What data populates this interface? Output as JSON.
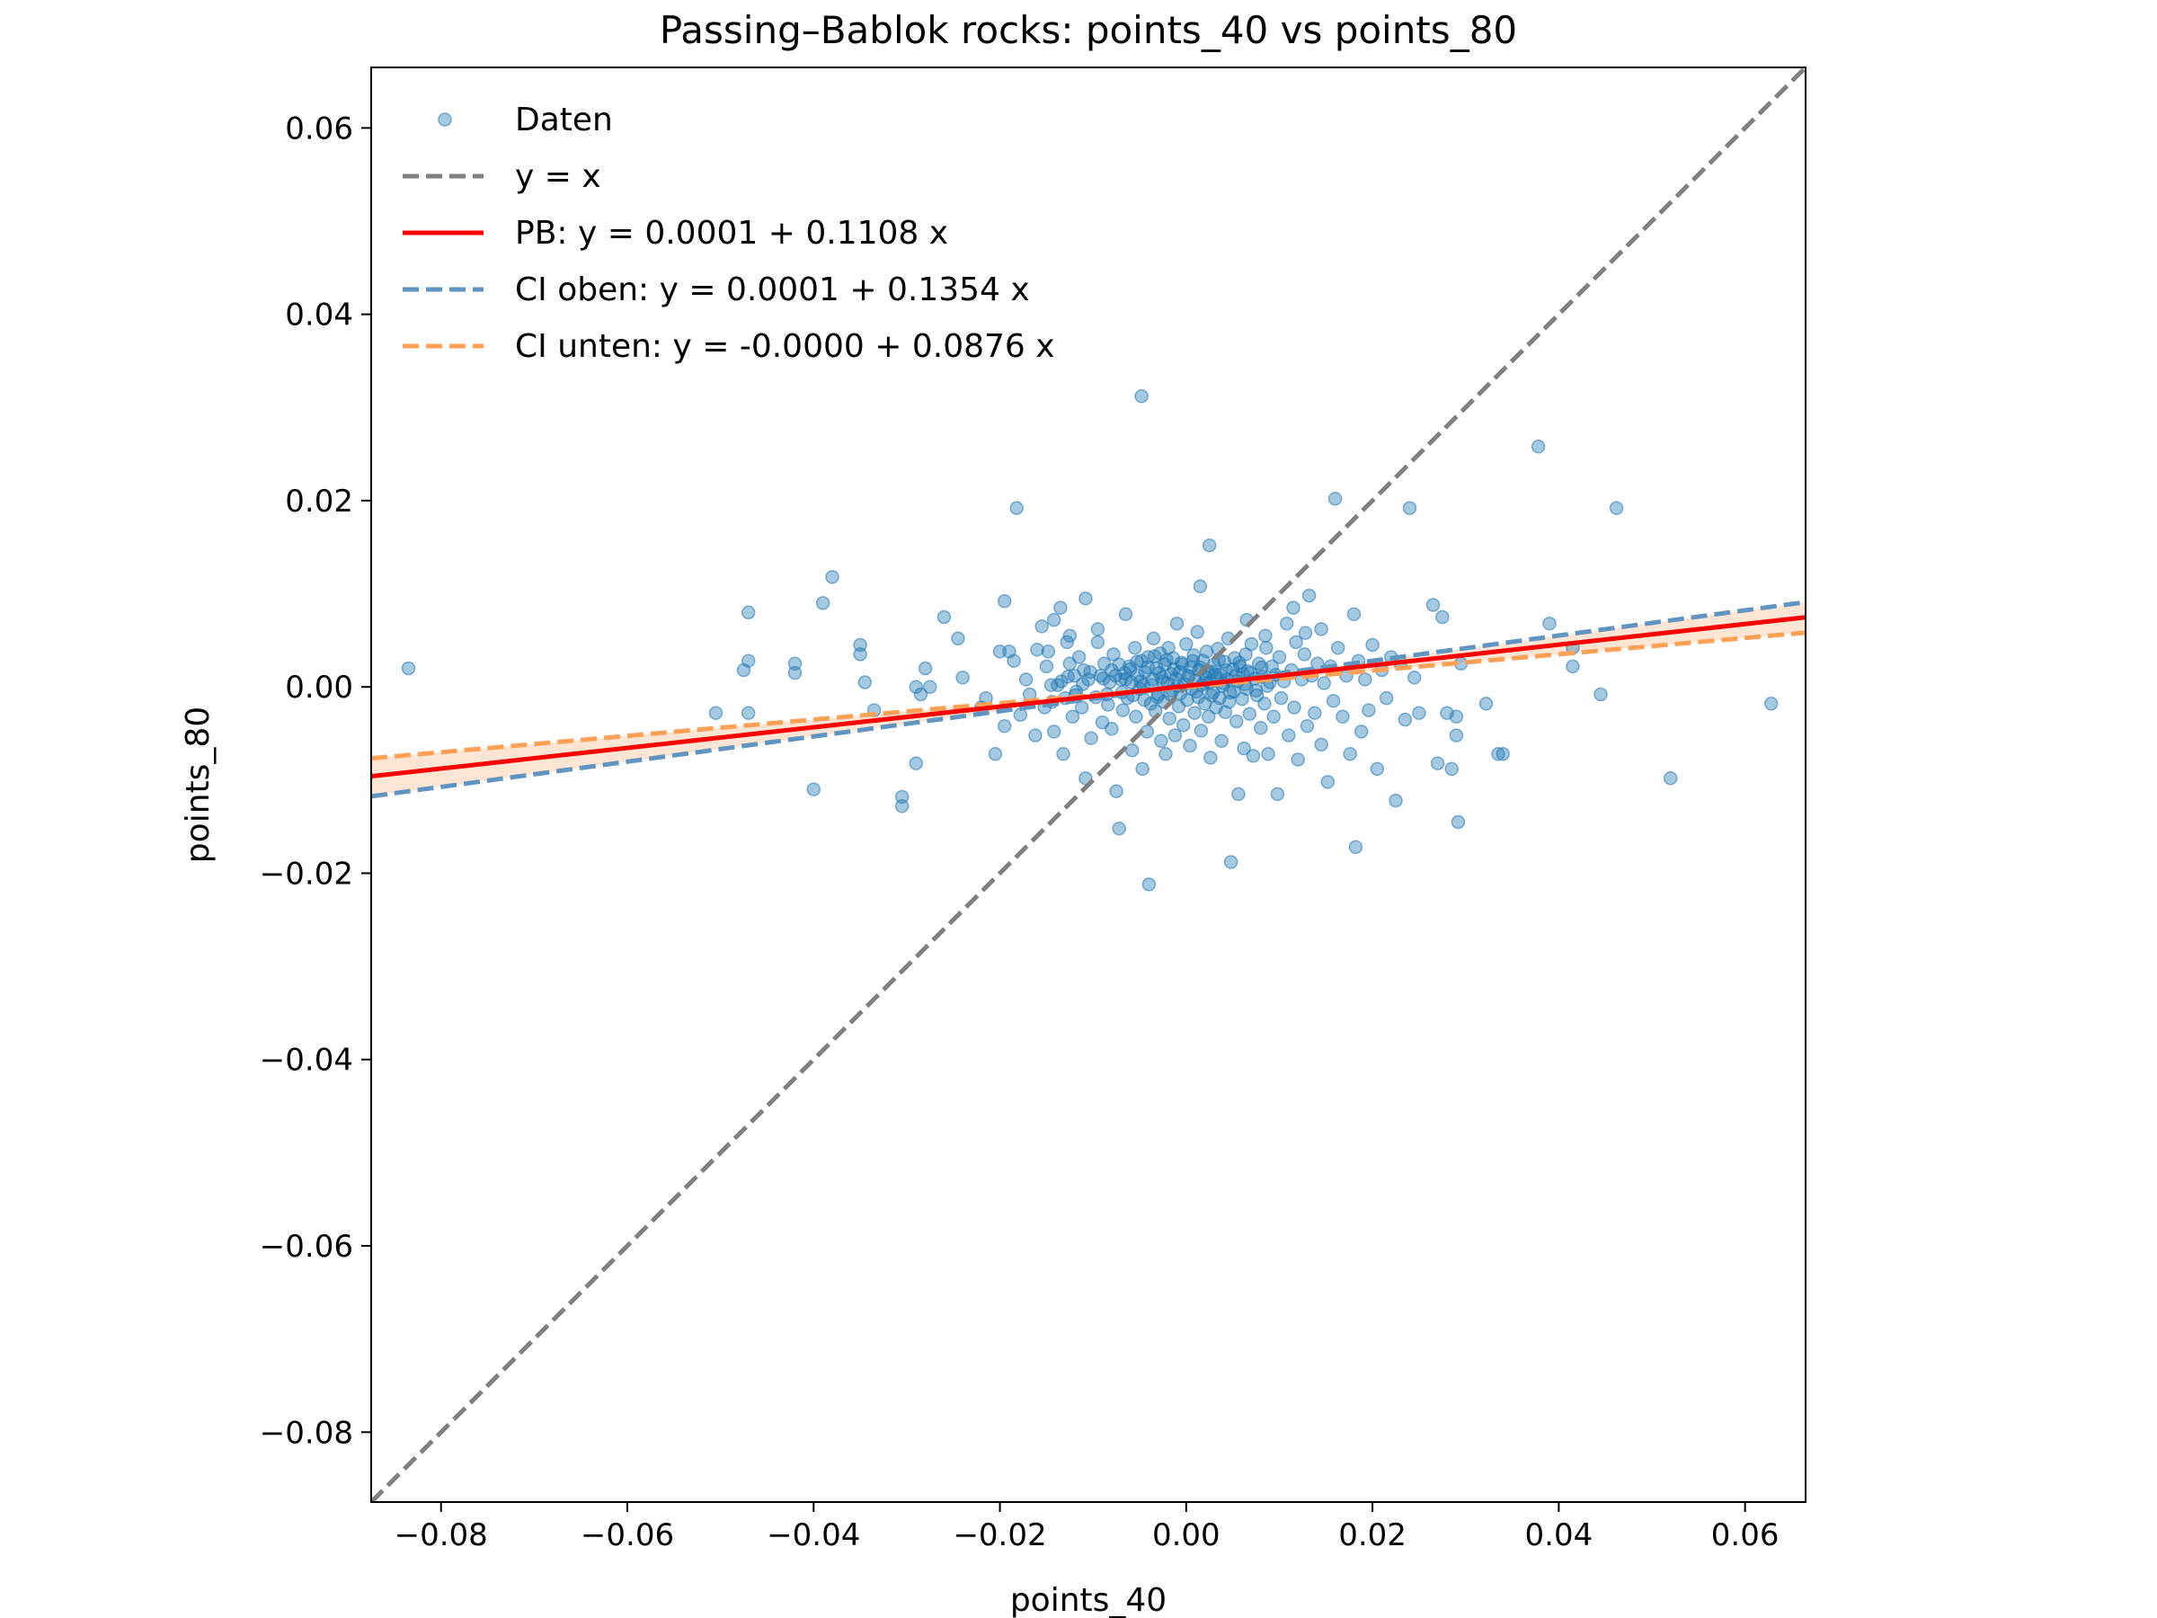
{
  "chart_data": {
    "type": "scatter",
    "title": "Passing–Bablok rocks: points_40 vs points_80",
    "xlabel": "points_40",
    "ylabel": "points_80",
    "xlim": [
      -0.0875,
      0.0665
    ],
    "ylim": [
      -0.0875,
      0.0665
    ],
    "xticks": [
      -0.08,
      -0.06,
      -0.04,
      -0.02,
      0.0,
      0.02,
      0.04,
      0.06
    ],
    "yticks": [
      -0.08,
      -0.06,
      -0.04,
      -0.02,
      0.0,
      0.02,
      0.04,
      0.06
    ],
    "xtick_labels": [
      "−0.08",
      "−0.06",
      "−0.04",
      "−0.02",
      "0.00",
      "0.02",
      "0.04",
      "0.06"
    ],
    "ytick_labels": [
      "−0.08",
      "−0.06",
      "−0.04",
      "−0.02",
      "0.00",
      "0.02",
      "0.04",
      "0.06"
    ],
    "grid": false,
    "legend_position": "top-left",
    "colors": {
      "points": "#1f77b4",
      "identity": "#808080",
      "pb": "#ff0000",
      "ci_upper": "#5f95c0",
      "ci_lower": "#ffa057",
      "ci_band": "#ffdcc2"
    },
    "lines": [
      {
        "name": "y = x",
        "kind": "identity",
        "intercept": 0.0,
        "slope": 1.0
      },
      {
        "name": "PB: y = 0.0001 + 0.1108 x",
        "kind": "pb",
        "intercept": 0.0001,
        "slope": 0.1108
      },
      {
        "name": "CI oben: y = 0.0001 + 0.1354 x",
        "kind": "ci_upper",
        "intercept": 0.0001,
        "slope": 0.1354
      },
      {
        "name": "CI unten: y = -0.0000 + 0.0876 x",
        "kind": "ci_lower",
        "intercept": 0.0,
        "slope": 0.0876
      }
    ],
    "scatter_series": {
      "name": "Daten",
      "points": [
        [
          -0.0835,
          0.002
        ],
        [
          -0.0505,
          -0.0028
        ],
        [
          -0.0475,
          0.0018
        ],
        [
          -0.047,
          0.0028
        ],
        [
          -0.047,
          0.008
        ],
        [
          -0.047,
          -0.0028
        ],
        [
          -0.042,
          0.0025
        ],
        [
          -0.042,
          0.0015
        ],
        [
          -0.04,
          -0.011
        ],
        [
          -0.039,
          0.009
        ],
        [
          -0.038,
          0.0118
        ],
        [
          -0.035,
          0.0045
        ],
        [
          -0.035,
          0.0035
        ],
        [
          -0.0345,
          0.0005
        ],
        [
          -0.0335,
          -0.0025
        ],
        [
          -0.0305,
          -0.0128
        ],
        [
          -0.0305,
          -0.0118
        ],
        [
          -0.0285,
          -0.0008
        ],
        [
          -0.029,
          -0.0082
        ],
        [
          -0.029,
          0.0
        ],
        [
          -0.028,
          0.002
        ],
        [
          -0.0275,
          0.0
        ],
        [
          -0.026,
          0.0075
        ],
        [
          -0.0245,
          0.0052
        ],
        [
          -0.024,
          0.001
        ],
        [
          -0.022,
          -0.0022
        ],
        [
          -0.0215,
          -0.0012
        ],
        [
          -0.0205,
          -0.0072
        ],
        [
          -0.02,
          0.0038
        ],
        [
          -0.0195,
          -0.0042
        ],
        [
          -0.0195,
          0.0092
        ],
        [
          -0.019,
          0.0038
        ],
        [
          -0.0185,
          0.0028
        ],
        [
          -0.0182,
          0.0192
        ],
        [
          -0.0178,
          -0.003
        ],
        [
          -0.0172,
          0.0008
        ],
        [
          -0.0168,
          -0.0008
        ],
        [
          -0.0162,
          -0.0052
        ],
        [
          -0.016,
          0.004
        ],
        [
          -0.0155,
          0.0065
        ],
        [
          -0.0152,
          -0.0022
        ],
        [
          -0.015,
          0.0022
        ],
        [
          -0.0148,
          0.0038
        ],
        [
          -0.0145,
          0.0002
        ],
        [
          -0.0142,
          -0.0048
        ],
        [
          -0.0138,
          0.0002
        ],
        [
          -0.0135,
          0.0085
        ],
        [
          -0.0132,
          -0.0072
        ],
        [
          -0.013,
          -0.0012
        ],
        [
          -0.0128,
          0.0048
        ],
        [
          -0.0125,
          0.0025
        ],
        [
          -0.0122,
          -0.0032
        ],
        [
          -0.012,
          0.0012
        ],
        [
          -0.0118,
          -0.0005
        ],
        [
          -0.0115,
          0.0032
        ],
        [
          -0.0112,
          -0.0022
        ],
        [
          -0.011,
          0.0018
        ],
        [
          -0.0108,
          -0.0098
        ],
        [
          -0.0105,
          0.0008
        ],
        [
          -0.0102,
          -0.0055
        ],
        [
          -0.0108,
          0.0095
        ],
        [
          -0.0095,
          0.0062
        ],
        [
          -0.0092,
          0.0012
        ],
        [
          -0.009,
          -0.0038
        ],
        [
          -0.0088,
          0.0025
        ],
        [
          -0.0085,
          -0.0008
        ],
        [
          -0.0082,
          0.0005
        ],
        [
          -0.008,
          -0.0045
        ],
        [
          -0.008,
          0.0018
        ],
        [
          -0.0078,
          0.0035
        ],
        [
          -0.0075,
          -0.0112
        ],
        [
          -0.0072,
          -0.0152
        ],
        [
          -0.007,
          0.0008
        ],
        [
          -0.0068,
          -0.0025
        ],
        [
          -0.0066,
          0.0015
        ],
        [
          -0.0065,
          0.0078
        ],
        [
          -0.0063,
          -0.0012
        ],
        [
          -0.0061,
          0.0022
        ],
        [
          -0.0059,
          0.0005
        ],
        [
          -0.0058,
          -0.0068
        ],
        [
          -0.0055,
          0.0042
        ],
        [
          -0.0054,
          -0.0032
        ],
        [
          -0.0052,
          0.0012
        ],
        [
          -0.005,
          -0.0002
        ],
        [
          -0.0048,
          0.0028
        ],
        [
          -0.0047,
          -0.0088
        ],
        [
          -0.0046,
          0.0002
        ],
        [
          -0.0044,
          0.0016
        ],
        [
          -0.0042,
          -0.0048
        ],
        [
          -0.0041,
          0.0032
        ],
        [
          -0.004,
          -0.0212
        ],
        [
          -0.0038,
          -0.0018
        ],
        [
          -0.0036,
          0.0008
        ],
        [
          -0.0035,
          0.0052
        ],
        [
          -0.0033,
          -0.0026
        ],
        [
          -0.0032,
          0.002
        ],
        [
          -0.003,
          -0.0008
        ],
        [
          -0.0028,
          0.0036
        ],
        [
          -0.0027,
          -0.0058
        ],
        [
          -0.0026,
          0.001
        ],
        [
          -0.0024,
          -0.0016
        ],
        [
          -0.0023,
          0.0024
        ],
        [
          -0.0022,
          -0.0072
        ],
        [
          -0.002,
          0.0004
        ],
        [
          -0.0019,
          0.0042
        ],
        [
          -0.0018,
          -0.0034
        ],
        [
          -0.0016,
          0.0014
        ],
        [
          -0.0015,
          -0.0004
        ],
        [
          -0.0014,
          0.0031
        ],
        [
          -0.0012,
          -0.0052
        ],
        [
          -0.0011,
          0.0009
        ],
        [
          -0.001,
          0.0068
        ],
        [
          -0.0008,
          -0.0021
        ],
        [
          -0.0007,
          0.0016
        ],
        [
          -0.0006,
          -0.0007
        ],
        [
          -0.0005,
          0.0026
        ],
        [
          -0.0003,
          -0.0041
        ],
        [
          -0.0002,
          0.0003
        ],
        [
          0.0,
          0.0046
        ],
        [
          0.0001,
          -0.0014
        ],
        [
          0.0002,
          0.0012
        ],
        [
          0.0004,
          -0.0063
        ],
        [
          0.0005,
          0.0021
        ],
        [
          0.0006,
          -0.0002
        ],
        [
          0.0008,
          0.0034
        ],
        [
          0.0009,
          -0.0028
        ],
        [
          0.001,
          0.0007
        ],
        [
          0.0012,
          0.0059
        ],
        [
          0.0013,
          -0.0011
        ],
        [
          0.0014,
          0.0018
        ],
        [
          0.0016,
          -0.0047
        ],
        [
          0.0017,
          0.0002
        ],
        [
          0.0018,
          0.0028
        ],
        [
          0.002,
          -0.0018
        ],
        [
          0.0021,
          0.0011
        ],
        [
          0.0022,
          0.0038
        ],
        [
          0.0024,
          -0.0032
        ],
        [
          0.0025,
          0.0005
        ],
        [
          0.0026,
          -0.0076
        ],
        [
          0.0028,
          0.0016
        ],
        [
          0.0029,
          -0.0006
        ],
        [
          0.003,
          0.0024
        ],
        [
          0.0032,
          -0.0022
        ],
        [
          0.0033,
          0.0009
        ],
        [
          0.0034,
          0.0041
        ],
        [
          0.0036,
          -0.0012
        ],
        [
          0.0037,
          0.0013
        ],
        [
          0.0038,
          -0.0058
        ],
        [
          0.004,
          0.0004
        ],
        [
          0.0041,
          0.0027
        ],
        [
          0.0042,
          -0.0027
        ],
        [
          0.0044,
          0.0008
        ],
        [
          0.0045,
          0.0052
        ],
        [
          0.0046,
          -0.0016
        ],
        [
          0.0048,
          -0.0188
        ],
        [
          0.005,
          0.0019
        ],
        [
          0.0051,
          -0.0005
        ],
        [
          0.0052,
          0.0031
        ],
        [
          0.0054,
          -0.0037
        ],
        [
          0.0055,
          0.0006
        ],
        [
          0.0056,
          -0.0115
        ],
        [
          0.0058,
          0.0022
        ],
        [
          0.006,
          -0.0013
        ],
        [
          0.0061,
          0.0014
        ],
        [
          0.0062,
          -0.0066
        ],
        [
          0.0064,
          0.0035
        ],
        [
          0.0065,
          -0.0002
        ],
        [
          0.0066,
          0.0017
        ],
        [
          0.0068,
          -0.0029
        ],
        [
          0.007,
          0.0046
        ],
        [
          0.0072,
          -0.0074
        ],
        [
          0.0074,
          0.0009
        ],
        [
          0.0076,
          -0.0009
        ],
        [
          0.0078,
          0.0025
        ],
        [
          0.008,
          -0.0044
        ],
        [
          0.0082,
          0.0011
        ],
        [
          0.0084,
          -0.0018
        ],
        [
          0.0086,
          0.0042
        ],
        [
          0.0088,
          -0.0072
        ],
        [
          0.009,
          0.0005
        ],
        [
          0.0092,
          0.0022
        ],
        [
          0.0094,
          -0.0032
        ],
        [
          0.0096,
          0.0013
        ],
        [
          0.0098,
          -0.0115
        ],
        [
          0.01,
          0.0032
        ],
        [
          0.0102,
          -0.0012
        ],
        [
          0.0105,
          0.0006
        ],
        [
          0.0108,
          0.0068
        ],
        [
          0.011,
          -0.0052
        ],
        [
          0.0113,
          0.0018
        ],
        [
          0.0116,
          -0.0022
        ],
        [
          0.0118,
          0.0048
        ],
        [
          0.012,
          -0.0078
        ],
        [
          0.0124,
          0.0008
        ],
        [
          0.0127,
          0.0035
        ],
        [
          0.013,
          -0.0042
        ],
        [
          0.0132,
          0.0098
        ],
        [
          0.0135,
          0.0012
        ],
        [
          0.0138,
          -0.0028
        ],
        [
          0.0141,
          0.0025
        ],
        [
          0.0145,
          -0.0062
        ],
        [
          0.0148,
          0.0004
        ],
        [
          0.0152,
          -0.0102
        ],
        [
          0.0155,
          0.0022
        ],
        [
          0.0158,
          -0.0015
        ],
        [
          0.016,
          0.0202
        ],
        [
          0.0163,
          0.0042
        ],
        [
          0.0168,
          -0.0032
        ],
        [
          0.0172,
          0.0012
        ],
        [
          0.0176,
          -0.0072
        ],
        [
          0.018,
          0.0078
        ],
        [
          0.0182,
          -0.0172
        ],
        [
          0.0185,
          0.0028
        ],
        [
          0.0188,
          -0.0048
        ],
        [
          0.0192,
          0.0008
        ],
        [
          0.0196,
          -0.0025
        ],
        [
          0.02,
          0.0045
        ],
        [
          0.0205,
          -0.0088
        ],
        [
          0.021,
          0.0018
        ],
        [
          0.0215,
          -0.0012
        ],
        [
          0.022,
          0.0032
        ],
        [
          0.0225,
          -0.0122
        ],
        [
          0.023,
          0.0025
        ],
        [
          0.0235,
          -0.0035
        ],
        [
          0.024,
          0.0192
        ],
        [
          0.0245,
          0.001
        ],
        [
          0.025,
          -0.0028
        ],
        [
          0.0265,
          0.0088
        ],
        [
          0.027,
          -0.0082
        ],
        [
          0.0275,
          0.0075
        ],
        [
          0.028,
          -0.0028
        ],
        [
          0.0285,
          -0.0088
        ],
        [
          0.029,
          -0.0032
        ],
        [
          0.029,
          -0.0052
        ],
        [
          0.0292,
          -0.0145
        ],
        [
          0.0295,
          0.0025
        ],
        [
          0.0322,
          -0.0018
        ],
        [
          0.0335,
          -0.0072
        ],
        [
          0.034,
          -0.0072
        ],
        [
          0.0378,
          0.0258
        ],
        [
          0.039,
          0.0068
        ],
        [
          0.0415,
          0.0042
        ],
        [
          0.0415,
          0.0022
        ],
        [
          0.0445,
          -0.0008
        ],
        [
          0.0462,
          0.0192
        ],
        [
          0.052,
          -0.0098
        ],
        [
          0.0628,
          -0.0018
        ],
        [
          0.0025,
          0.0152
        ],
        [
          0.0015,
          0.0108
        ],
        [
          -0.0048,
          0.0312
        ],
        [
          0.0085,
          0.0055
        ],
        [
          0.0065,
          0.0072
        ],
        [
          0.0115,
          0.0085
        ],
        [
          0.0128,
          0.0058
        ],
        [
          -0.0125,
          0.0055
        ],
        [
          -0.0142,
          0.0072
        ],
        [
          -0.0095,
          0.0048
        ],
        [
          0.0145,
          0.0062
        ],
        [
          -0.0065,
          0.0008
        ],
        [
          -0.006,
          0.0019
        ],
        [
          -0.0057,
          -0.0009
        ],
        [
          -0.0053,
          0.0027
        ],
        [
          -0.0049,
          0.0006
        ],
        [
          -0.0045,
          -0.0014
        ],
        [
          -0.0041,
          0.0021
        ],
        [
          -0.0037,
          0.0002
        ],
        [
          -0.0034,
          0.0033
        ],
        [
          -0.0031,
          -0.0011
        ],
        [
          -0.0029,
          0.0015
        ],
        [
          -0.0025,
          0.0006
        ],
        [
          -0.0021,
          0.0029
        ],
        [
          -0.0017,
          -0.0008
        ],
        [
          -0.0013,
          0.0019
        ],
        [
          -0.0009,
          0.0001
        ],
        [
          -0.0004,
          0.0024
        ],
        [
          0.0003,
          0.0011
        ],
        [
          0.0007,
          0.0028
        ],
        [
          0.0011,
          -0.0005
        ],
        [
          0.0015,
          0.0021
        ],
        [
          0.0019,
          0.0004
        ],
        [
          0.0023,
          0.0017
        ],
        [
          0.0027,
          -0.0009
        ],
        [
          0.0031,
          0.0013
        ],
        [
          0.0035,
          0.0029
        ],
        [
          0.0039,
          0.0001
        ],
        [
          0.0043,
          0.0018
        ],
        [
          0.0047,
          -0.0006
        ],
        [
          0.0053,
          0.0012
        ],
        [
          0.0057,
          0.0026
        ],
        [
          0.0063,
          0.0003
        ],
        [
          0.0069,
          0.0015
        ],
        [
          0.0075,
          -0.0004
        ],
        [
          0.0081,
          0.0021
        ],
        [
          0.0087,
          0.0001
        ],
        [
          -0.0072,
          0.0024
        ],
        [
          -0.0069,
          -0.0006
        ],
        [
          -0.0076,
          0.0012
        ],
        [
          -0.0084,
          -0.0019
        ],
        [
          -0.0089,
          0.0009
        ],
        [
          -0.0097,
          -0.0011
        ],
        [
          -0.0103,
          0.0016
        ],
        [
          -0.0111,
          0.0003
        ],
        [
          -0.0119,
          -0.0009
        ],
        [
          -0.0127,
          0.0011
        ],
        [
          -0.0134,
          0.0006
        ],
        [
          -0.0144,
          -0.0016
        ]
      ]
    }
  }
}
